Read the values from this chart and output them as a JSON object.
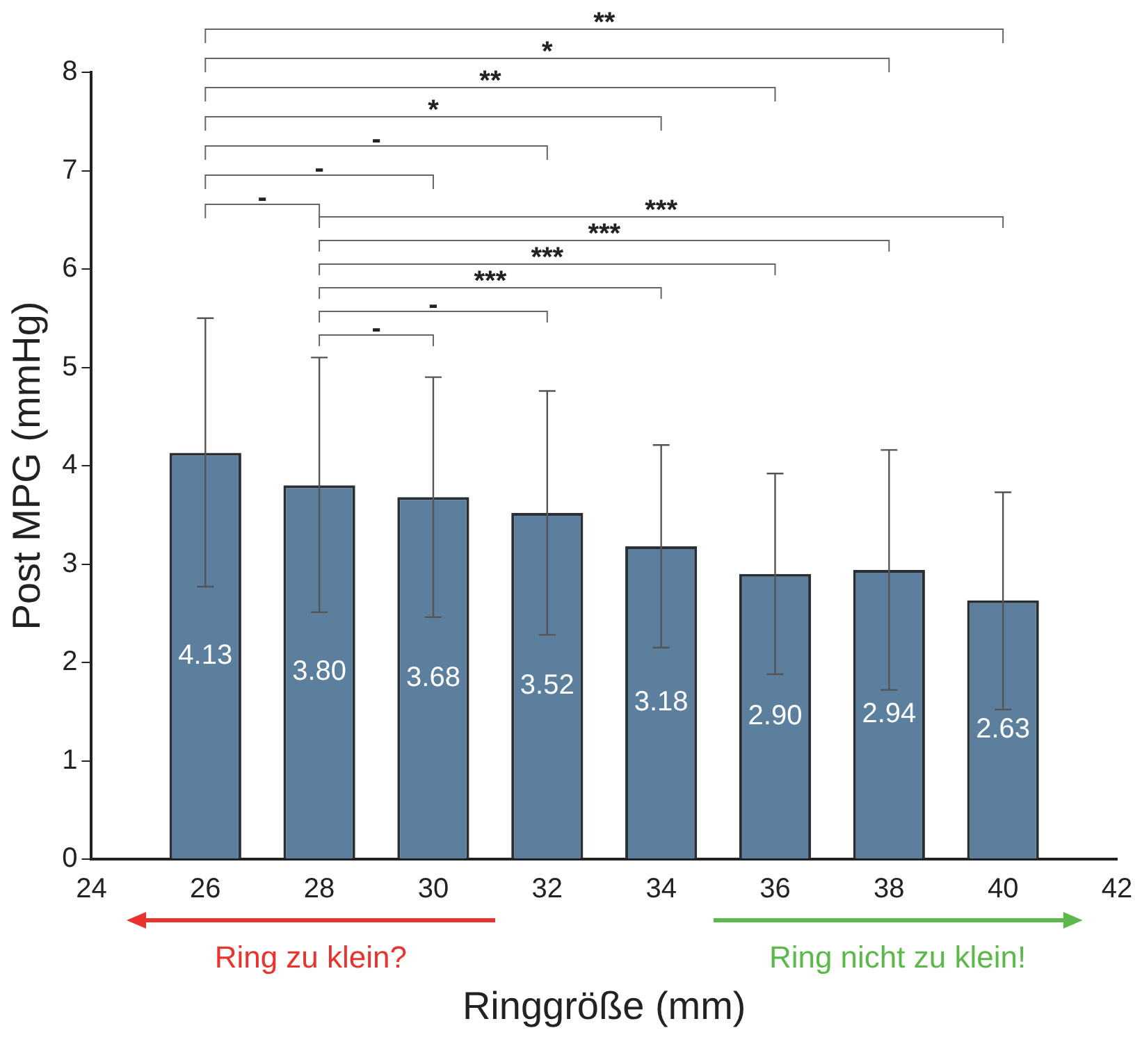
{
  "chart_data": {
    "type": "bar",
    "xlabel": "Ringgröße (mm)",
    "ylabel": "Post MPG (mmHg)",
    "x": [
      26,
      28,
      30,
      32,
      34,
      36,
      38,
      40
    ],
    "series": [
      {
        "color": "#5b7f9c",
        "values": [
          4.13,
          3.8,
          3.68,
          3.52,
          3.18,
          2.9,
          2.94,
          2.63
        ],
        "errors": [
          [
            2.77,
            5.5
          ],
          [
            2.51,
            5.1
          ],
          [
            2.46,
            4.9
          ],
          [
            2.28,
            4.76
          ],
          [
            2.15,
            4.21
          ],
          [
            1.88,
            3.92
          ],
          [
            1.72,
            4.16
          ],
          [
            1.52,
            3.73
          ]
        ],
        "value_labels": [
          "4.13",
          "3.80",
          "3.68",
          "3.52",
          "3.18",
          "2.90",
          "2.94",
          "2.63"
        ]
      }
    ],
    "xlim": [
      24,
      42
    ],
    "xticks": [
      24,
      26,
      28,
      30,
      32,
      34,
      36,
      38,
      40,
      42
    ],
    "ylim": [
      0,
      8
    ],
    "yticks": [
      0,
      1,
      2,
      3,
      4,
      5,
      6,
      7,
      8
    ],
    "grid": false,
    "legend": false,
    "annotations": [
      "**",
      "*",
      "**",
      "*",
      "-",
      "-",
      "-",
      "***",
      "***",
      "***",
      "***",
      "-",
      "-",
      "Ring zu klein?",
      "Ring nicht zu klein!"
    ]
  }
}
